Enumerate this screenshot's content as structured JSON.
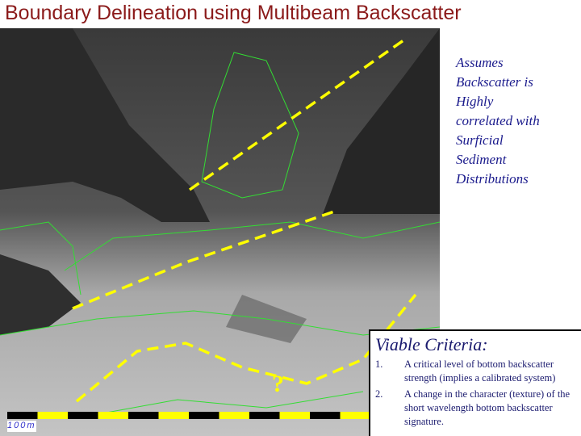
{
  "title": "Boundary Delineation using Multibeam Backscatter",
  "assumption": [
    "Assumes",
    "Backscatter is",
    "Highly",
    "correlated with",
    "Surficial",
    "Sediment",
    "Distributions"
  ],
  "criteria": {
    "title": "Viable Criteria:",
    "items": [
      {
        "num": "1.",
        "text": "A critical level of bottom backscatter strength (implies a calibrated system)"
      },
      {
        "num": "2.",
        "text": "A change in the character (texture) of the short wavelength bottom backscatter signature."
      }
    ]
  },
  "map": {
    "scale_label": "100m",
    "question_mark": "?",
    "colors": {
      "boundary": "#ffff00",
      "contour": "#33dd33",
      "scale_dark": "#000000",
      "scale_light": "#ffff00"
    }
  }
}
